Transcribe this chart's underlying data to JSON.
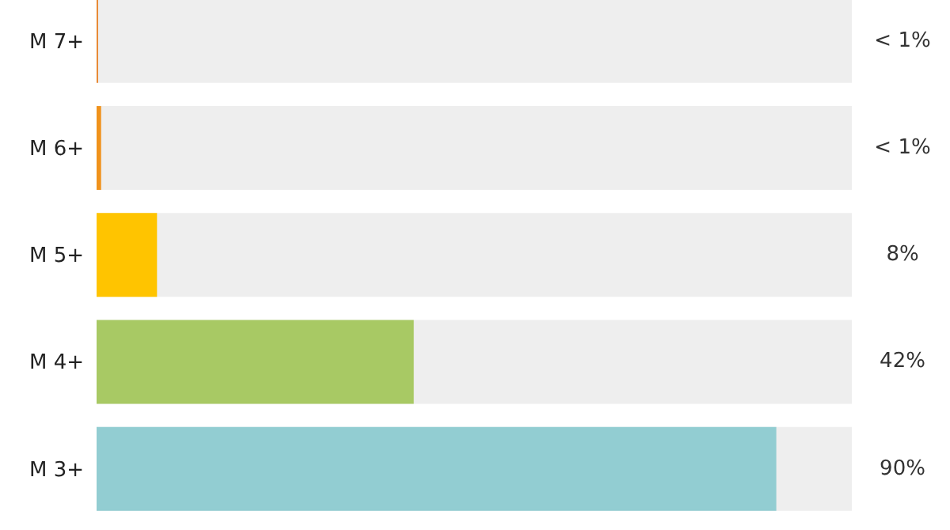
{
  "chart_data": {
    "type": "bar",
    "orientation": "horizontal",
    "categories": [
      "M 7+",
      "M 6+",
      "M 5+",
      "M 4+",
      "M 3+"
    ],
    "values": [
      0.2,
      0.6,
      8,
      42,
      90
    ],
    "colors": [
      "#e8842a",
      "#f0921c",
      "#ffc400",
      "#a8c964",
      "#92cdd2"
    ],
    "value_labels": [
      "< 1%",
      "< 1%",
      "8%",
      "42%",
      "90%"
    ],
    "xlim": [
      0,
      100
    ],
    "tick_labels": "y"
  }
}
